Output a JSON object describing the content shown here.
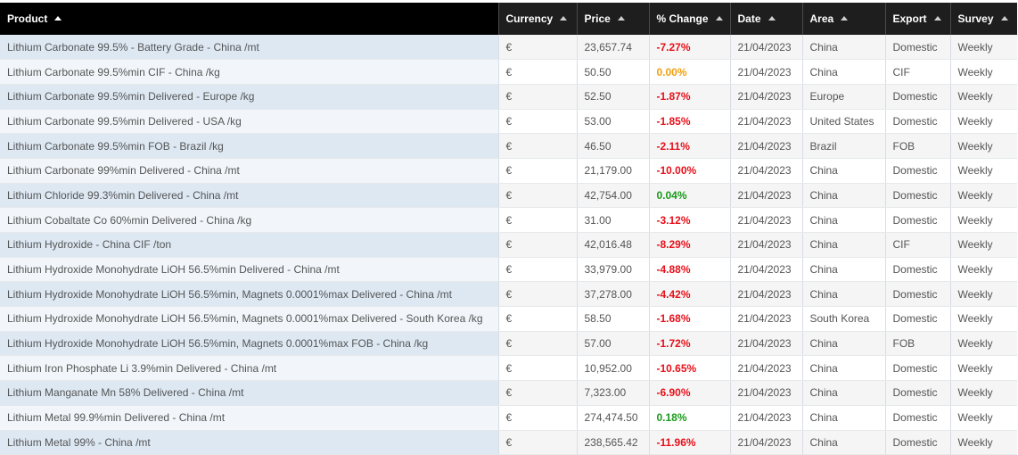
{
  "table": {
    "headers": [
      {
        "key": "product",
        "label": "Product"
      },
      {
        "key": "currency",
        "label": "Currency"
      },
      {
        "key": "price",
        "label": "Price"
      },
      {
        "key": "change",
        "label": "% Change"
      },
      {
        "key": "date",
        "label": "Date"
      },
      {
        "key": "area",
        "label": "Area"
      },
      {
        "key": "export",
        "label": "Export"
      },
      {
        "key": "survey",
        "label": "Survey"
      }
    ],
    "rows": [
      {
        "product": "Lithium Carbonate 99.5% - Battery Grade - China /mt",
        "currency": "€",
        "price": "23,657.74",
        "change": "-7.27%",
        "date": "21/04/2023",
        "area": "China",
        "export": "Domestic",
        "survey": "Weekly"
      },
      {
        "product": "Lithium Carbonate 99.5%min CIF - China /kg",
        "currency": "€",
        "price": "50.50",
        "change": "0.00%",
        "date": "21/04/2023",
        "area": "China",
        "export": "CIF",
        "survey": "Weekly"
      },
      {
        "product": "Lithium Carbonate 99.5%min Delivered - Europe /kg",
        "currency": "€",
        "price": "52.50",
        "change": "-1.87%",
        "date": "21/04/2023",
        "area": "Europe",
        "export": "Domestic",
        "survey": "Weekly"
      },
      {
        "product": "Lithium Carbonate 99.5%min Delivered - USA /kg",
        "currency": "€",
        "price": "53.00",
        "change": "-1.85%",
        "date": "21/04/2023",
        "area": "United States",
        "export": "Domestic",
        "survey": "Weekly"
      },
      {
        "product": "Lithium Carbonate 99.5%min FOB - Brazil /kg",
        "currency": "€",
        "price": "46.50",
        "change": "-2.11%",
        "date": "21/04/2023",
        "area": "Brazil",
        "export": "FOB",
        "survey": "Weekly"
      },
      {
        "product": "Lithium Carbonate 99%min Delivered - China /mt",
        "currency": "€",
        "price": "21,179.00",
        "change": "-10.00%",
        "date": "21/04/2023",
        "area": "China",
        "export": "Domestic",
        "survey": "Weekly"
      },
      {
        "product": "Lithium Chloride 99.3%min Delivered - China /mt",
        "currency": "€",
        "price": "42,754.00",
        "change": "0.04%",
        "date": "21/04/2023",
        "area": "China",
        "export": "Domestic",
        "survey": "Weekly"
      },
      {
        "product": "Lithium Cobaltate Co 60%min Delivered - China /kg",
        "currency": "€",
        "price": "31.00",
        "change": "-3.12%",
        "date": "21/04/2023",
        "area": "China",
        "export": "Domestic",
        "survey": "Weekly"
      },
      {
        "product": "Lithium Hydroxide - China CIF /ton",
        "currency": "€",
        "price": "42,016.48",
        "change": "-8.29%",
        "date": "21/04/2023",
        "area": "China",
        "export": "CIF",
        "survey": "Weekly"
      },
      {
        "product": "Lithium Hydroxide Monohydrate LiOH 56.5%min Delivered - China /mt",
        "currency": "€",
        "price": "33,979.00",
        "change": "-4.88%",
        "date": "21/04/2023",
        "area": "China",
        "export": "Domestic",
        "survey": "Weekly"
      },
      {
        "product": "Lithium Hydroxide Monohydrate LiOH 56.5%min, Magnets 0.0001%max Delivered - China /mt",
        "currency": "€",
        "price": "37,278.00",
        "change": "-4.42%",
        "date": "21/04/2023",
        "area": "China",
        "export": "Domestic",
        "survey": "Weekly"
      },
      {
        "product": "Lithium Hydroxide Monohydrate LiOH 56.5%min, Magnets 0.0001%max Delivered - South Korea /kg",
        "currency": "€",
        "price": "58.50",
        "change": "-1.68%",
        "date": "21/04/2023",
        "area": "South Korea",
        "export": "Domestic",
        "survey": "Weekly"
      },
      {
        "product": "Lithium Hydroxide Monohydrate LiOH 56.5%min, Magnets 0.0001%max FOB - China /kg",
        "currency": "€",
        "price": "57.00",
        "change": "-1.72%",
        "date": "21/04/2023",
        "area": "China",
        "export": "FOB",
        "survey": "Weekly"
      },
      {
        "product": "Lithium Iron Phosphate Li 3.9%min Delivered - China /mt",
        "currency": "€",
        "price": "10,952.00",
        "change": "-10.65%",
        "date": "21/04/2023",
        "area": "China",
        "export": "Domestic",
        "survey": "Weekly"
      },
      {
        "product": "Lithium Manganate Mn 58% Delivered - China /mt",
        "currency": "€",
        "price": "7,323.00",
        "change": "-6.90%",
        "date": "21/04/2023",
        "area": "China",
        "export": "Domestic",
        "survey": "Weekly"
      },
      {
        "product": "Lithium Metal 99.9%min Delivered - China /mt",
        "currency": "€",
        "price": "274,474.50",
        "change": "0.18%",
        "date": "21/04/2023",
        "area": "China",
        "export": "Domestic",
        "survey": "Weekly"
      },
      {
        "product": "Lithium Metal 99% - China /mt",
        "currency": "€",
        "price": "238,565.42",
        "change": "-11.96%",
        "date": "21/04/2023",
        "area": "China",
        "export": "Domestic",
        "survey": "Weekly"
      }
    ]
  },
  "colors": {
    "negative": "#e8101a",
    "positive": "#1a9a1a",
    "unchanged": "#f0a010",
    "header_bg": "#1e1e1e"
  },
  "icons": {
    "sort": "sort-ascending-icon"
  }
}
